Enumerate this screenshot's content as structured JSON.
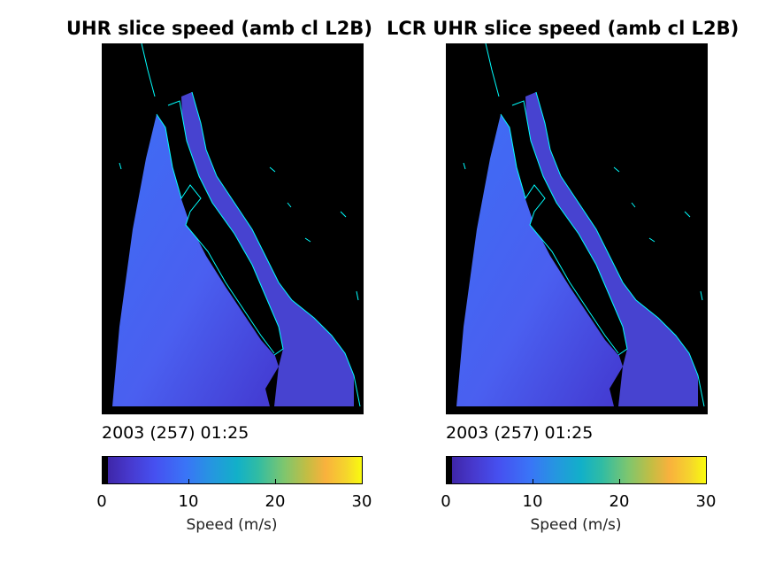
{
  "panels": [
    {
      "title": "UHR slice speed (amb cl L2B)",
      "timestamp": "2003 (257) 01:25",
      "colorbar": {
        "ticks": [
          "0",
          "10",
          "20",
          "30"
        ],
        "label": "Speed (m/s)",
        "range": [
          0,
          30
        ]
      }
    },
    {
      "title": "LCR UHR slice speed (amb cl L2B)",
      "timestamp": "2003 (257) 01:25",
      "colorbar": {
        "ticks": [
          "0",
          "10",
          "20",
          "30"
        ],
        "label": "Speed (m/s)",
        "range": [
          0,
          30
        ]
      }
    }
  ],
  "colors": {
    "background": "#000000",
    "coastline": "#00ffff",
    "ocean_low": "#4650f0",
    "ocean_mid": "#3a74f7"
  }
}
